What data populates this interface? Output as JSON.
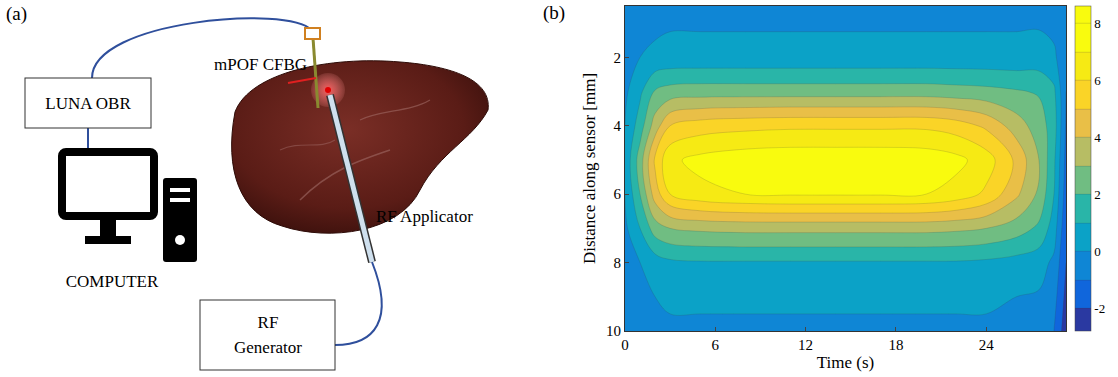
{
  "panel_a": {
    "label": "(a)",
    "nodes": [
      {
        "id": "obr",
        "label": "LUNA OBR"
      },
      {
        "id": "computer",
        "label": "COMPUTER"
      },
      {
        "id": "generator",
        "label": [
          "RF",
          "Generator"
        ]
      },
      {
        "id": "sensor",
        "label": "mPOF CFBG"
      },
      {
        "id": "applicator",
        "label": "RF Applicator"
      }
    ]
  },
  "chart_data": {
    "type": "contour",
    "panel_label": "(b)",
    "xlabel": "Time (s)",
    "ylabel": "Distance along sensor [mm]",
    "x": [
      0,
      1,
      2,
      3,
      5,
      8,
      11,
      14,
      17,
      20,
      22,
      24,
      26,
      27.5,
      28.5,
      29.3
    ],
    "y": [
      0,
      1,
      2,
      3,
      4,
      5,
      6,
      7,
      8,
      9,
      10
    ],
    "z": [
      [
        -1.0,
        -0.6,
        -0.4,
        -0.3,
        -0.2,
        -0.2,
        -0.2,
        -0.2,
        -0.2,
        -0.2,
        -0.2,
        -0.2,
        -0.2,
        -0.3,
        -0.4,
        -0.6
      ],
      [
        -0.7,
        -0.3,
        -0.2,
        -0.1,
        -0.1,
        -0.1,
        -0.1,
        -0.1,
        -0.1,
        -0.1,
        -0.1,
        -0.1,
        -0.1,
        -0.1,
        -0.3,
        -0.7
      ],
      [
        -0.4,
        0.0,
        0.2,
        0.3,
        0.3,
        0.3,
        0.3,
        0.3,
        0.3,
        0.3,
        0.3,
        0.3,
        0.3,
        0.4,
        0.2,
        -0.8
      ],
      [
        -0.2,
        0.8,
        2.1,
        2.4,
        2.5,
        2.5,
        2.5,
        2.5,
        2.5,
        2.5,
        2.4,
        2.3,
        2.1,
        1.9,
        1.2,
        -1.0
      ],
      [
        0.0,
        1.5,
        3.5,
        5.0,
        5.5,
        5.7,
        5.8,
        5.8,
        5.8,
        5.8,
        5.5,
        4.8,
        3.5,
        2.5,
        1.5,
        -1.1
      ],
      [
        0.2,
        2.5,
        5.2,
        6.8,
        7.3,
        7.6,
        7.7,
        7.7,
        7.7,
        7.6,
        7.3,
        6.5,
        4.8,
        3.0,
        1.2,
        -1.3
      ],
      [
        0.0,
        2.0,
        4.5,
        6.0,
        6.7,
        7.0,
        7.1,
        7.1,
        7.1,
        7.0,
        6.6,
        5.8,
        4.2,
        2.8,
        1.0,
        -1.5
      ],
      [
        -0.2,
        1.0,
        2.5,
        3.0,
        3.2,
        3.3,
        3.3,
        3.3,
        3.3,
        3.3,
        3.2,
        3.0,
        2.5,
        1.8,
        0.5,
        -1.8
      ],
      [
        -0.3,
        0.0,
        0.5,
        0.8,
        0.9,
        0.9,
        0.9,
        0.9,
        0.9,
        0.9,
        0.9,
        0.8,
        0.6,
        0.4,
        -0.2,
        -2.0
      ],
      [
        -0.3,
        -0.2,
        0.0,
        0.1,
        0.1,
        0.1,
        0.1,
        0.1,
        0.1,
        0.1,
        0.1,
        0.1,
        0.0,
        -0.1,
        -0.6,
        -2.3
      ],
      [
        -0.4,
        -0.3,
        -0.2,
        -0.1,
        -0.1,
        -0.1,
        -0.1,
        -0.1,
        -0.1,
        -0.1,
        -0.1,
        -0.1,
        -0.2,
        -0.3,
        -1.0,
        -2.6
      ]
    ],
    "levels": [
      -3,
      -2,
      -1,
      0,
      1,
      2,
      3,
      4,
      5,
      6,
      7,
      8
    ],
    "colorbar": {
      "range": [
        -2.8,
        8.6
      ],
      "ticks": [
        -2,
        0,
        2,
        4,
        6,
        8
      ]
    },
    "xlim": [
      0,
      29.3
    ],
    "xticks": [
      0,
      6,
      12,
      18,
      24
    ],
    "ylim": [
      10,
      0.5
    ],
    "yticks": [
      2,
      4,
      6,
      8,
      10
    ]
  }
}
